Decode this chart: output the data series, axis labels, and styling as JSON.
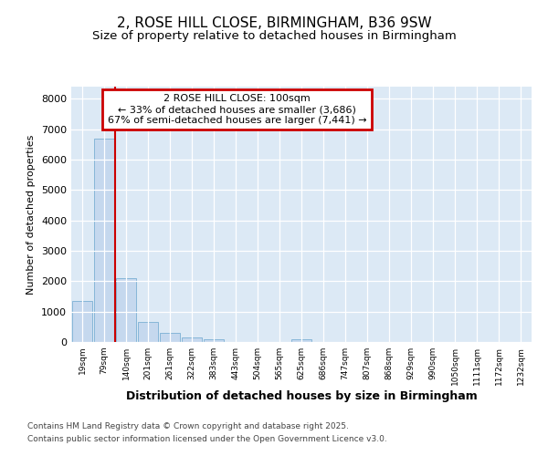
{
  "title1": "2, ROSE HILL CLOSE, BIRMINGHAM, B36 9SW",
  "title2": "Size of property relative to detached houses in Birmingham",
  "xlabel": "Distribution of detached houses by size in Birmingham",
  "ylabel": "Number of detached properties",
  "categories": [
    "19sqm",
    "79sqm",
    "140sqm",
    "201sqm",
    "261sqm",
    "322sqm",
    "383sqm",
    "443sqm",
    "504sqm",
    "565sqm",
    "625sqm",
    "686sqm",
    "747sqm",
    "807sqm",
    "868sqm",
    "929sqm",
    "990sqm",
    "1050sqm",
    "1111sqm",
    "1172sqm",
    "1232sqm"
  ],
  "values": [
    1350,
    6700,
    2100,
    650,
    310,
    150,
    80,
    0,
    0,
    0,
    80,
    0,
    0,
    0,
    0,
    0,
    0,
    0,
    0,
    0,
    0
  ],
  "bar_color": "#c5d8ee",
  "bar_edge_color": "#7aafd4",
  "vline_color": "#cc0000",
  "annotation_title": "2 ROSE HILL CLOSE: 100sqm",
  "annotation_line1": "← 33% of detached houses are smaller (3,686)",
  "annotation_line2": "67% of semi-detached houses are larger (7,441) →",
  "annotation_box_color": "#cc0000",
  "plot_bg": "#dce9f5",
  "ylim": [
    0,
    8400
  ],
  "yticks": [
    0,
    1000,
    2000,
    3000,
    4000,
    5000,
    6000,
    7000,
    8000
  ],
  "footnote1": "Contains HM Land Registry data © Crown copyright and database right 2025.",
  "footnote2": "Contains public sector information licensed under the Open Government Licence v3.0.",
  "fig_bg": "#ffffff",
  "vline_index": 1.5
}
